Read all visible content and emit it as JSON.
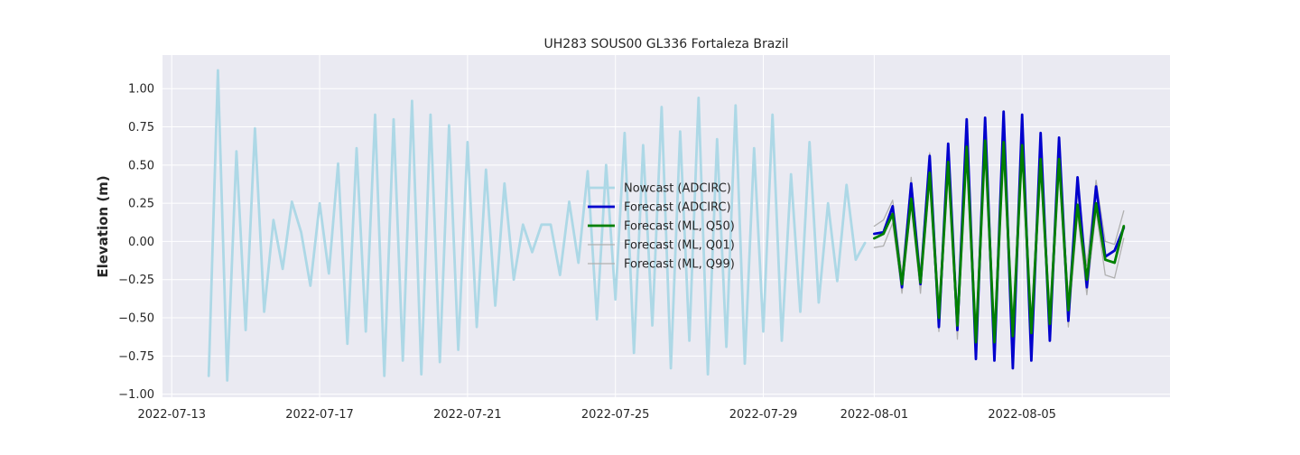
{
  "chart_data": {
    "type": "line",
    "title": "UH283 SOUS00 GL336 Fortaleza Brazil",
    "xlabel": "",
    "ylabel": "Elevation (m)",
    "xlim": [
      "2022-07-12T18:00",
      "2022-08-09T00:00"
    ],
    "ylim": [
      -1.02,
      1.22
    ],
    "x_ticks": [
      "2022-07-13",
      "2022-07-17",
      "2022-07-21",
      "2022-07-25",
      "2022-07-29",
      "2022-08-01",
      "2022-08-05"
    ],
    "y_ticks": [
      -1.0,
      -0.75,
      -0.5,
      -0.25,
      0.0,
      0.25,
      0.5,
      0.75,
      1.0
    ],
    "y_tick_labels": [
      "−1.00",
      "−0.75",
      "−0.50",
      "−0.25",
      "0.00",
      "0.25",
      "0.50",
      "0.75",
      "1.00"
    ],
    "grid": true,
    "legend_placement": "center",
    "background": "#eaeaf2",
    "series": [
      {
        "name": "Nowcast (ADCIRC)",
        "color": "#add8e6",
        "width": 2.8,
        "x": [
          "2022-07-14T00:00",
          "2022-07-14T06:00",
          "2022-07-14T12:00",
          "2022-07-14T18:00",
          "2022-07-15T00:00",
          "2022-07-15T06:00",
          "2022-07-15T12:00",
          "2022-07-15T18:00",
          "2022-07-16T00:00",
          "2022-07-16T06:00",
          "2022-07-16T12:00",
          "2022-07-16T18:00",
          "2022-07-17T00:00",
          "2022-07-17T06:00",
          "2022-07-17T12:00",
          "2022-07-17T18:00",
          "2022-07-18T00:00",
          "2022-07-18T06:00",
          "2022-07-18T12:00",
          "2022-07-18T18:00",
          "2022-07-19T00:00",
          "2022-07-19T06:00",
          "2022-07-19T12:00",
          "2022-07-19T18:00",
          "2022-07-20T00:00",
          "2022-07-20T06:00",
          "2022-07-20T12:00",
          "2022-07-20T18:00",
          "2022-07-21T00:00",
          "2022-07-21T06:00",
          "2022-07-21T12:00",
          "2022-07-21T18:00",
          "2022-07-22T00:00",
          "2022-07-22T06:00",
          "2022-07-22T12:00",
          "2022-07-22T18:00",
          "2022-07-23T00:00",
          "2022-07-23T06:00",
          "2022-07-23T12:00",
          "2022-07-23T18:00",
          "2022-07-24T00:00",
          "2022-07-24T06:00",
          "2022-07-24T12:00",
          "2022-07-24T18:00",
          "2022-07-25T00:00",
          "2022-07-25T06:00",
          "2022-07-25T12:00",
          "2022-07-25T18:00",
          "2022-07-26T00:00",
          "2022-07-26T06:00",
          "2022-07-26T12:00",
          "2022-07-26T18:00",
          "2022-07-27T00:00",
          "2022-07-27T06:00",
          "2022-07-27T12:00",
          "2022-07-27T18:00",
          "2022-07-28T00:00",
          "2022-07-28T06:00",
          "2022-07-28T12:00",
          "2022-07-28T18:00",
          "2022-07-29T00:00",
          "2022-07-29T06:00",
          "2022-07-29T12:00",
          "2022-07-29T18:00",
          "2022-07-30T00:00",
          "2022-07-30T06:00",
          "2022-07-30T12:00",
          "2022-07-30T18:00",
          "2022-07-31T00:00",
          "2022-07-31T06:00",
          "2022-07-31T12:00",
          "2022-07-31T18:00"
        ],
        "y": [
          -0.88,
          1.12,
          -0.91,
          0.59,
          -0.58,
          0.74,
          -0.46,
          0.14,
          -0.18,
          0.26,
          0.06,
          -0.29,
          0.25,
          -0.21,
          0.51,
          -0.67,
          0.61,
          -0.59,
          0.83,
          -0.88,
          0.8,
          -0.78,
          0.92,
          -0.87,
          0.83,
          -0.79,
          0.76,
          -0.71,
          0.65,
          -0.56,
          0.47,
          -0.42,
          0.38,
          -0.25,
          0.11,
          -0.07,
          0.11,
          0.11,
          -0.22,
          0.26,
          -0.14,
          0.46,
          -0.51,
          0.5,
          -0.38,
          0.71,
          -0.73,
          0.63,
          -0.55,
          0.88,
          -0.83,
          0.72,
          -0.65,
          0.94,
          -0.87,
          0.67,
          -0.69,
          0.89,
          -0.8,
          0.61,
          -0.59,
          0.83,
          -0.65,
          0.44,
          -0.46,
          0.65,
          -0.4,
          0.25,
          -0.26,
          0.37,
          -0.12,
          -0.01
        ]
      },
      {
        "name": "Forecast (ADCIRC)",
        "color": "#0000cd",
        "width": 2.8,
        "x": [
          "2022-08-01T00:00",
          "2022-08-01T06:00",
          "2022-08-01T12:00",
          "2022-08-01T18:00",
          "2022-08-02T00:00",
          "2022-08-02T06:00",
          "2022-08-02T12:00",
          "2022-08-02T18:00",
          "2022-08-03T00:00",
          "2022-08-03T06:00",
          "2022-08-03T12:00",
          "2022-08-03T18:00",
          "2022-08-04T00:00",
          "2022-08-04T06:00",
          "2022-08-04T12:00",
          "2022-08-04T18:00",
          "2022-08-05T00:00",
          "2022-08-05T06:00",
          "2022-08-05T12:00",
          "2022-08-05T18:00",
          "2022-08-06T00:00",
          "2022-08-06T06:00",
          "2022-08-06T12:00",
          "2022-08-06T18:00",
          "2022-08-07T00:00",
          "2022-08-07T06:00",
          "2022-08-07T12:00",
          "2022-08-07T18:00"
        ],
        "y": [
          0.05,
          0.06,
          0.23,
          -0.3,
          0.38,
          -0.28,
          0.56,
          -0.56,
          0.64,
          -0.58,
          0.8,
          -0.77,
          0.81,
          -0.78,
          0.85,
          -0.83,
          0.83,
          -0.78,
          0.71,
          -0.65,
          0.68,
          -0.52,
          0.42,
          -0.3,
          0.36,
          -0.1,
          -0.06,
          0.09
        ]
      },
      {
        "name": "Forecast (ML, Q50)",
        "color": "#008000",
        "width": 2.8,
        "x": [
          "2022-08-01T00:00",
          "2022-08-01T06:00",
          "2022-08-01T12:00",
          "2022-08-01T18:00",
          "2022-08-02T00:00",
          "2022-08-02T06:00",
          "2022-08-02T12:00",
          "2022-08-02T18:00",
          "2022-08-03T00:00",
          "2022-08-03T06:00",
          "2022-08-03T12:00",
          "2022-08-03T18:00",
          "2022-08-04T00:00",
          "2022-08-04T06:00",
          "2022-08-04T12:00",
          "2022-08-04T18:00",
          "2022-08-05T00:00",
          "2022-08-05T06:00",
          "2022-08-05T12:00",
          "2022-08-05T18:00",
          "2022-08-06T00:00",
          "2022-08-06T06:00",
          "2022-08-06T12:00",
          "2022-08-06T18:00",
          "2022-08-07T00:00",
          "2022-08-07T06:00",
          "2022-08-07T12:00",
          "2022-08-07T18:00"
        ],
        "y": [
          0.02,
          0.05,
          0.18,
          -0.28,
          0.28,
          -0.27,
          0.45,
          -0.5,
          0.52,
          -0.55,
          0.62,
          -0.66,
          0.66,
          -0.66,
          0.65,
          -0.62,
          0.63,
          -0.6,
          0.54,
          -0.54,
          0.54,
          -0.45,
          0.24,
          -0.25,
          0.25,
          -0.12,
          -0.14,
          0.1
        ]
      },
      {
        "name": "Forecast (ML, Q01)",
        "color": "#b0b0b0",
        "width": 1.3,
        "x": [
          "2022-08-01T00:00",
          "2022-08-01T06:00",
          "2022-08-01T12:00",
          "2022-08-01T18:00",
          "2022-08-02T00:00",
          "2022-08-02T06:00",
          "2022-08-02T12:00",
          "2022-08-02T18:00",
          "2022-08-03T00:00",
          "2022-08-03T06:00",
          "2022-08-03T12:00",
          "2022-08-03T18:00",
          "2022-08-04T00:00",
          "2022-08-04T06:00",
          "2022-08-04T12:00",
          "2022-08-04T18:00",
          "2022-08-05T00:00",
          "2022-08-05T06:00",
          "2022-08-05T12:00",
          "2022-08-05T18:00",
          "2022-08-06T00:00",
          "2022-08-06T06:00",
          "2022-08-06T12:00",
          "2022-08-06T18:00",
          "2022-08-07T00:00",
          "2022-08-07T06:00",
          "2022-08-07T12:00",
          "2022-08-07T18:00"
        ],
        "y": [
          -0.04,
          -0.03,
          0.12,
          -0.34,
          0.24,
          -0.34,
          0.4,
          -0.59,
          0.47,
          -0.64,
          0.56,
          -0.73,
          0.6,
          -0.73,
          0.6,
          -0.68,
          0.57,
          -0.68,
          0.48,
          -0.6,
          0.48,
          -0.56,
          0.18,
          -0.35,
          0.2,
          -0.22,
          -0.24,
          0.02
        ]
      },
      {
        "name": "Forecast (ML, Q99)",
        "color": "#b0b0b0",
        "width": 1.3,
        "x": [
          "2022-08-01T00:00",
          "2022-08-01T06:00",
          "2022-08-01T12:00",
          "2022-08-01T18:00",
          "2022-08-02T00:00",
          "2022-08-02T06:00",
          "2022-08-02T12:00",
          "2022-08-02T18:00",
          "2022-08-03T00:00",
          "2022-08-03T06:00",
          "2022-08-03T12:00",
          "2022-08-03T18:00",
          "2022-08-04T00:00",
          "2022-08-04T06:00",
          "2022-08-04T12:00",
          "2022-08-04T18:00",
          "2022-08-05T00:00",
          "2022-08-05T06:00",
          "2022-08-05T12:00",
          "2022-08-05T18:00",
          "2022-08-06T00:00",
          "2022-08-06T06:00",
          "2022-08-06T12:00",
          "2022-08-06T18:00",
          "2022-08-07T00:00",
          "2022-08-07T06:00",
          "2022-08-07T12:00",
          "2022-08-07T18:00"
        ],
        "y": [
          0.1,
          0.14,
          0.27,
          -0.22,
          0.42,
          -0.2,
          0.58,
          -0.43,
          0.6,
          -0.46,
          0.7,
          -0.58,
          0.73,
          -0.58,
          0.72,
          -0.54,
          0.7,
          -0.52,
          0.62,
          -0.46,
          0.6,
          -0.37,
          0.32,
          -0.16,
          0.4,
          0.0,
          -0.02,
          0.2
        ]
      }
    ]
  }
}
